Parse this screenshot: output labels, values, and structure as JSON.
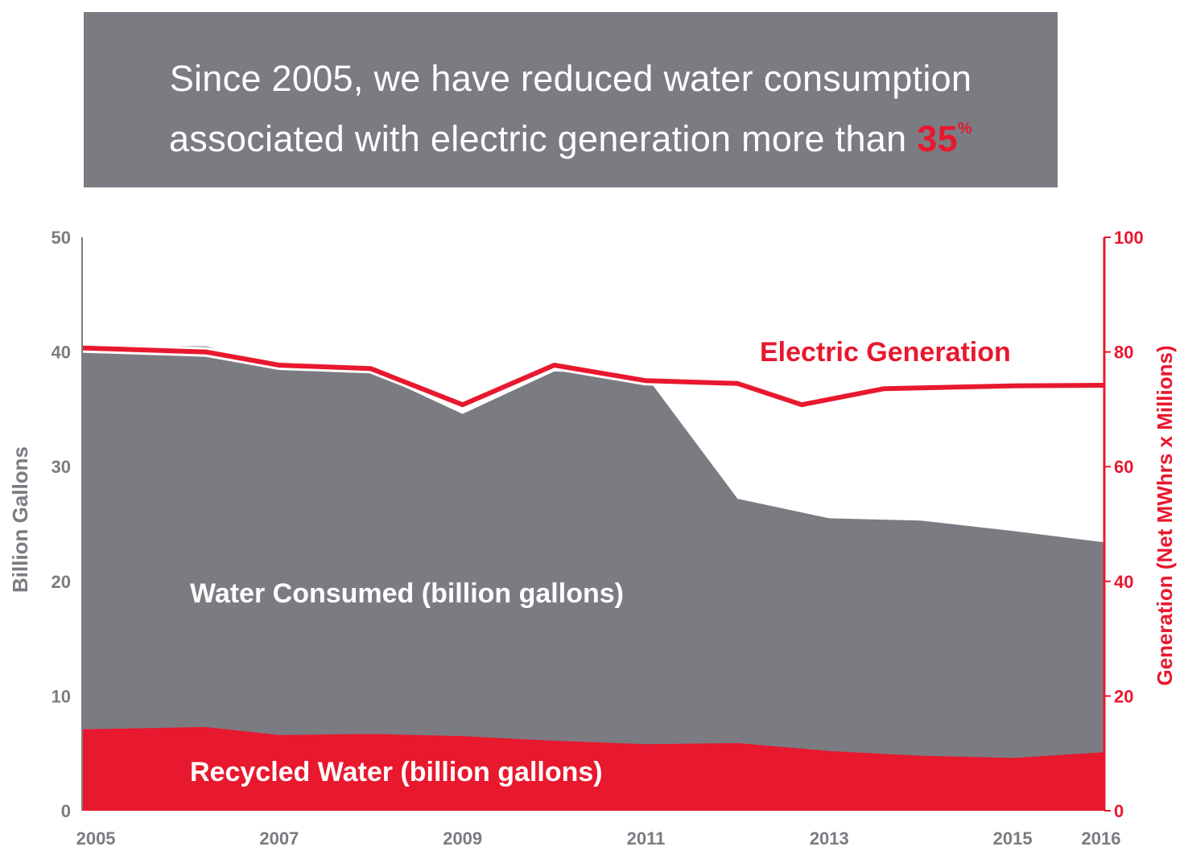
{
  "banner": {
    "line1": "Since 2005, we have reduced water consumption",
    "line2_prefix": "associated with electric generation more than ",
    "highlight_value": "35",
    "highlight_unit": "%"
  },
  "colors": {
    "banner_bg": "#7b7c82",
    "water_consumed": "#7b7c82",
    "recycled_water": "#e8182e",
    "electric_generation": "#e8182e",
    "left_axis": "#7b7c82",
    "right_axis": "#e8182e"
  },
  "chart_data": {
    "type": "area",
    "title": "",
    "x_tick_labels": [
      "2005",
      "2007",
      "2009",
      "2011",
      "2013",
      "2015",
      "2016"
    ],
    "x_tick_values": [
      2005,
      2007,
      2009,
      2011,
      2013,
      2015,
      2016
    ],
    "xlim": [
      2004.85,
      2016
    ],
    "ylabel_left": "Billion Gallons",
    "ylim_left": [
      0,
      50
    ],
    "yticks_left": [
      0,
      10,
      20,
      30,
      40,
      50
    ],
    "ylabel_right": "Generation (Net MWhrs x Millions)",
    "ylim_right": [
      0,
      100
    ],
    "yticks_right": [
      0,
      20,
      40,
      60,
      80,
      100
    ],
    "series": [
      {
        "name": "Water Consumed (billion gallons)",
        "axis": "left",
        "type": "area",
        "x": [
          2004.85,
          2006.2,
          2007,
          2008,
          2009,
          2010,
          2011,
          2012,
          2013,
          2014,
          2015,
          2016
        ],
        "values": [
          40.5,
          40.5,
          38.7,
          38.3,
          34.6,
          38.3,
          37.9,
          27.2,
          25.5,
          25.3,
          24.4,
          23.4
        ]
      },
      {
        "name": "Recycled Water (billion gallons)",
        "axis": "left",
        "type": "area",
        "x": [
          2004.85,
          2006.2,
          2007,
          2008,
          2009,
          2010,
          2011,
          2012,
          2013,
          2014,
          2015,
          2016
        ],
        "values": [
          7.1,
          7.3,
          6.6,
          6.7,
          6.5,
          6.1,
          5.8,
          5.9,
          5.2,
          4.8,
          4.6,
          5.1
        ]
      },
      {
        "name": "Electric Generation",
        "axis": "right",
        "type": "line",
        "x": [
          2004.85,
          2006.2,
          2007,
          2008,
          2009,
          2010,
          2011,
          2012,
          2012.7,
          2013.6,
          2015,
          2016
        ],
        "values": [
          80.7,
          80.0,
          77.7,
          77.1,
          70.8,
          77.7,
          75.0,
          74.5,
          70.8,
          73.6,
          74.1,
          74.2
        ]
      }
    ],
    "annotations": {
      "water_consumed_label": "Water Consumed (billion gallons)",
      "recycled_water_label": "Recycled Water (billion gallons)",
      "electric_generation_label": "Electric Generation"
    }
  }
}
